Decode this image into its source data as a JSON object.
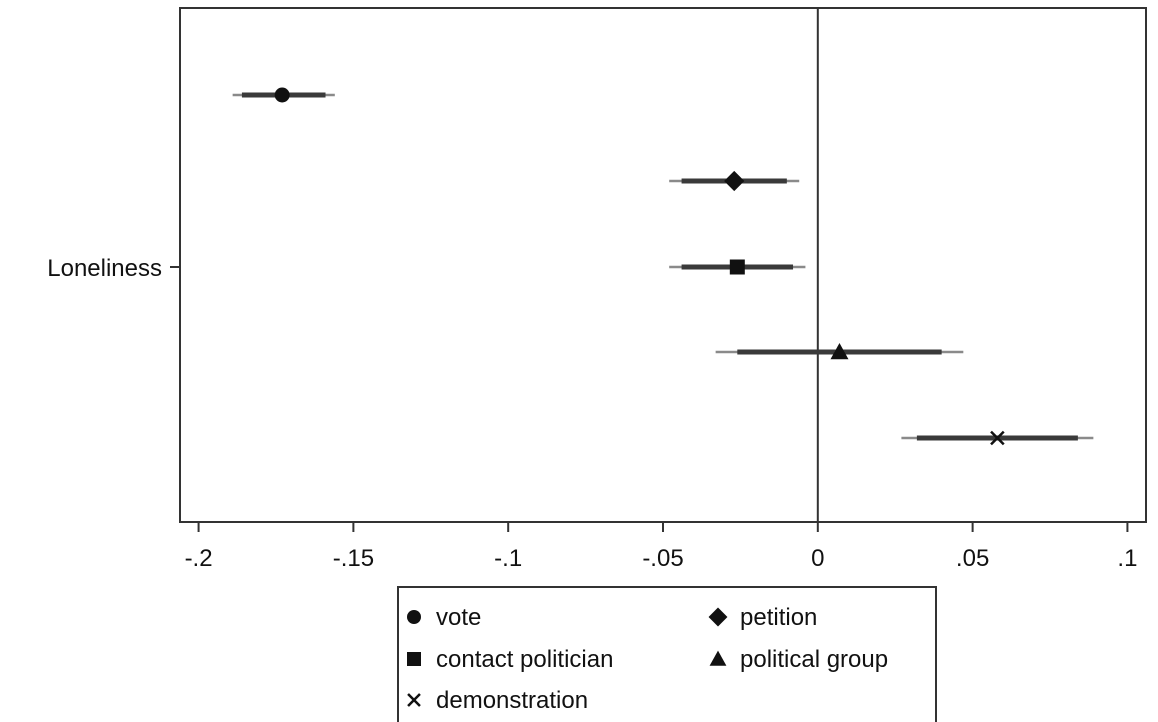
{
  "chart_data": {
    "type": "scatter",
    "title": "",
    "xlabel": "",
    "ylabel": "",
    "category_label": "Loneliness",
    "xlim": [
      -0.206,
      0.106
    ],
    "xticks": [
      {
        "value": -0.2,
        "label": "-.2"
      },
      {
        "value": -0.15,
        "label": "-.15"
      },
      {
        "value": -0.1,
        "label": "-.1"
      },
      {
        "value": -0.05,
        "label": "-.05"
      },
      {
        "value": 0,
        "label": "0"
      },
      {
        "value": 0.05,
        "label": ".05"
      },
      {
        "value": 0.1,
        "label": ".1"
      }
    ],
    "reference_line": 0,
    "grid": false,
    "legend_position": "bottom",
    "series": [
      {
        "name": "vote",
        "marker": "circle",
        "estimate": -0.173,
        "ci95": [
          -0.189,
          -0.156
        ],
        "ci90": [
          -0.186,
          -0.159
        ]
      },
      {
        "name": "petition",
        "marker": "diamond",
        "estimate": -0.027,
        "ci95": [
          -0.048,
          -0.006
        ],
        "ci90": [
          -0.044,
          -0.01
        ]
      },
      {
        "name": "contact politician",
        "marker": "square",
        "estimate": -0.026,
        "ci95": [
          -0.048,
          -0.004
        ],
        "ci90": [
          -0.044,
          -0.008
        ]
      },
      {
        "name": "political group",
        "marker": "triangle",
        "estimate": 0.007,
        "ci95": [
          -0.033,
          0.047
        ],
        "ci90": [
          -0.026,
          0.04
        ]
      },
      {
        "name": "demonstration",
        "marker": "x",
        "estimate": 0.058,
        "ci95": [
          0.027,
          0.089
        ],
        "ci90": [
          0.032,
          0.084
        ]
      }
    ],
    "legend_layout": [
      [
        "vote",
        "petition"
      ],
      [
        "contact politician",
        "political group"
      ],
      [
        "demonstration"
      ]
    ]
  }
}
